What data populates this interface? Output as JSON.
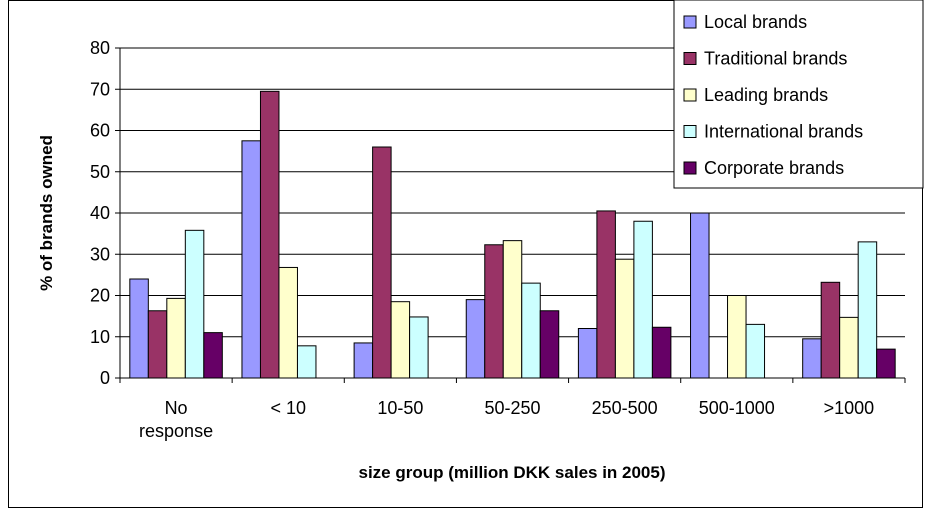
{
  "chart_data": {
    "type": "bar",
    "title": "",
    "xlabel": "size group (million DKK sales in 2005)",
    "ylabel": "% of brands owned",
    "ylim": [
      0,
      80
    ],
    "yticks": [
      0,
      10,
      20,
      30,
      40,
      50,
      60,
      70,
      80
    ],
    "grid": true,
    "legend_position": "top-right",
    "categories": [
      [
        "No",
        "response"
      ],
      [
        "< 10"
      ],
      [
        "10-50"
      ],
      [
        "50-250"
      ],
      [
        "250-500"
      ],
      [
        "500-1000"
      ],
      [
        ">1000"
      ]
    ],
    "series": [
      {
        "name": "Local brands",
        "color": "#9999ff",
        "values": [
          24,
          57.5,
          8.5,
          19,
          12,
          40,
          9.5
        ]
      },
      {
        "name": "Traditional brands",
        "color": "#993366",
        "values": [
          16.3,
          69.5,
          56,
          32.3,
          40.5,
          null,
          23.2
        ]
      },
      {
        "name": "Leading brands",
        "color": "#ffffcc",
        "values": [
          19.3,
          26.8,
          18.5,
          33.3,
          28.8,
          20,
          14.7
        ]
      },
      {
        "name": "International brands",
        "color": "#ccffff",
        "values": [
          35.8,
          7.8,
          14.8,
          23,
          38,
          13,
          33
        ]
      },
      {
        "name": "Corporate brands",
        "color": "#660066",
        "values": [
          11,
          null,
          null,
          16.3,
          12.3,
          null,
          7
        ]
      }
    ]
  }
}
